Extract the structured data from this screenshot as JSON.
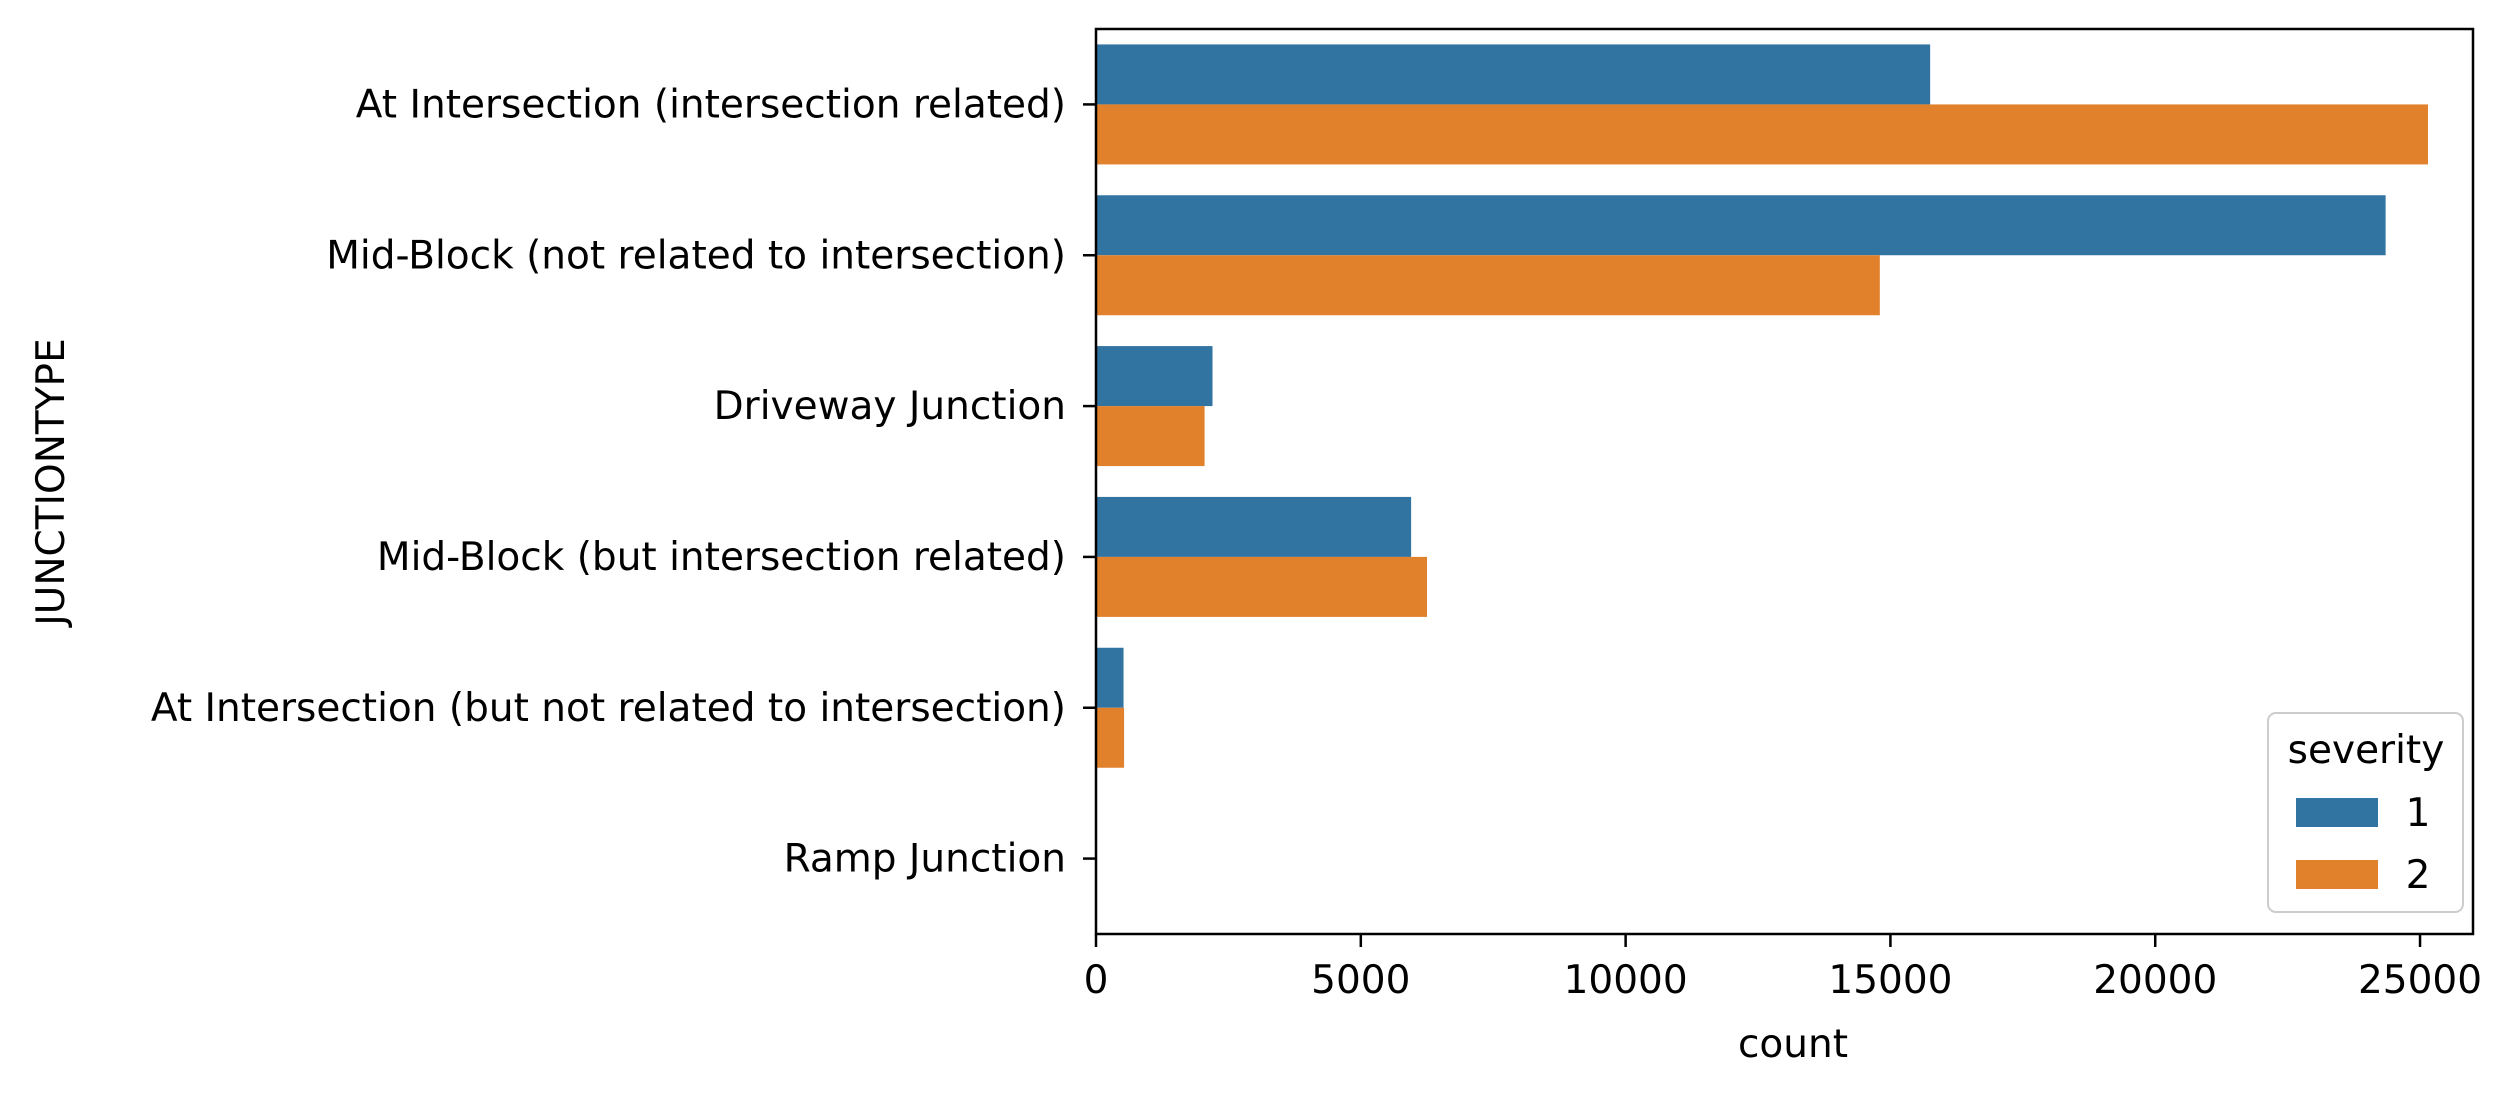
{
  "chart_data": {
    "type": "bar",
    "orientation": "horizontal",
    "xlabel": "count",
    "ylabel": "JUNCTIONTYPE",
    "xlim": [
      0,
      26000
    ],
    "xticks": [
      0,
      5000,
      10000,
      15000,
      20000,
      25000
    ],
    "xtick_labels": [
      "0",
      "5000",
      "10000",
      "15000",
      "20000",
      "25000"
    ],
    "grid": false,
    "categories": [
      "At Intersection (intersection related)",
      "Mid-Block (not related to intersection)",
      "Driveway Junction",
      "Mid-Block (but intersection related)",
      "At Intersection (but not related to intersection)",
      "Ramp Junction"
    ],
    "legend": {
      "title": "severity",
      "placement": "lower right"
    },
    "series": [
      {
        "name": "1",
        "color": "#3274a1",
        "values": [
          15750,
          24350,
          2200,
          5950,
          520,
          0
        ]
      },
      {
        "name": "2",
        "color": "#e1812c",
        "values": [
          25150,
          14800,
          2050,
          6250,
          530,
          0
        ]
      }
    ]
  }
}
